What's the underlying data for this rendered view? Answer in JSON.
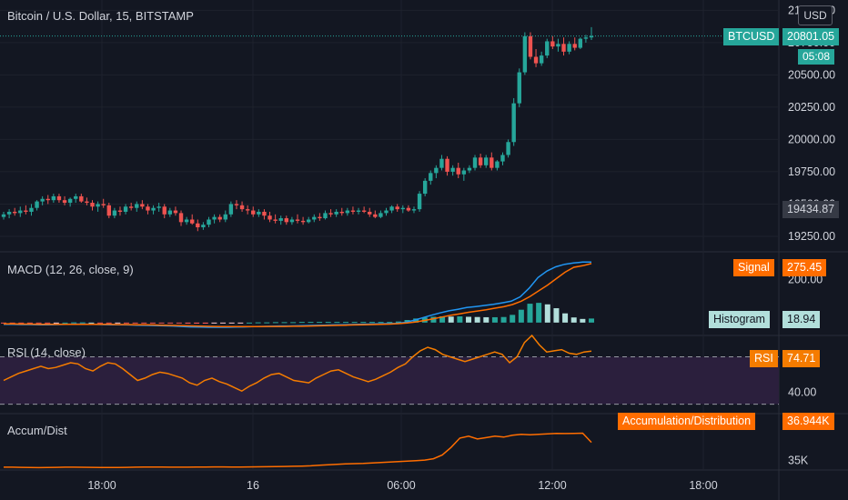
{
  "header": {
    "title": "Bitcoin / U.S. Dollar, 15, BITSTAMP",
    "currency_button": "USD"
  },
  "price_pane": {
    "symbol_tag": "BTCUSD",
    "last_price": "20801.05",
    "countdown": "05:08",
    "crosshair_price": "19434.87",
    "ticks": [
      "21000.00",
      "20750.00",
      "20500.00",
      "20250.00",
      "20000.00",
      "19750.00",
      "19500.00",
      "19250.00"
    ]
  },
  "macd_pane": {
    "title": "MACD (12, 26, close, 9)",
    "signal_label": "Signal",
    "signal_value": "275.45",
    "histogram_label": "Histogram",
    "histogram_value": "18.94",
    "tick": "200.00"
  },
  "rsi_pane": {
    "title": "RSI (14, close)",
    "rsi_label": "RSI",
    "rsi_value": "74.71",
    "tick": "40.00"
  },
  "ad_pane": {
    "title": "Accum/Dist",
    "label": "Accumulation/Distribution",
    "value": "36.944K",
    "tick": "35K"
  },
  "time_axis": [
    "18:00",
    "16",
    "06:00",
    "12:00",
    "18:00"
  ],
  "colors": {
    "background": "#131722",
    "up": "#26a69a",
    "down": "#ef5350",
    "macd": "#2196f3",
    "signal": "#ff6d00",
    "rsi": "#f57c00",
    "accent": "#26a69a"
  },
  "chart_data": {
    "type": "candlestick",
    "interval": "15",
    "price_range": [
      19130,
      21080
    ],
    "candles": [
      [
        19400,
        19440,
        19380,
        19420
      ],
      [
        19420,
        19460,
        19390,
        19440
      ],
      [
        19440,
        19470,
        19410,
        19430
      ],
      [
        19430,
        19480,
        19400,
        19450
      ],
      [
        19450,
        19490,
        19420,
        19440
      ],
      [
        19440,
        19500,
        19410,
        19470
      ],
      [
        19470,
        19530,
        19450,
        19520
      ],
      [
        19520,
        19560,
        19490,
        19540
      ],
      [
        19540,
        19570,
        19500,
        19530
      ],
      [
        19530,
        19580,
        19510,
        19560
      ],
      [
        19560,
        19580,
        19510,
        19530
      ],
      [
        19530,
        19560,
        19490,
        19510
      ],
      [
        19510,
        19550,
        19480,
        19540
      ],
      [
        19540,
        19580,
        19510,
        19560
      ],
      [
        19560,
        19580,
        19510,
        19520
      ],
      [
        19520,
        19550,
        19490,
        19510
      ],
      [
        19510,
        19530,
        19450,
        19480
      ],
      [
        19480,
        19520,
        19440,
        19500
      ],
      [
        19500,
        19540,
        19470,
        19490
      ],
      [
        19490,
        19510,
        19390,
        19410
      ],
      [
        19410,
        19470,
        19390,
        19450
      ],
      [
        19450,
        19480,
        19410,
        19440
      ],
      [
        19440,
        19500,
        19420,
        19480
      ],
      [
        19480,
        19510,
        19450,
        19470
      ],
      [
        19470,
        19520,
        19440,
        19500
      ],
      [
        19500,
        19530,
        19460,
        19480
      ],
      [
        19480,
        19500,
        19420,
        19450
      ],
      [
        19450,
        19490,
        19420,
        19470
      ],
      [
        19470,
        19510,
        19440,
        19480
      ],
      [
        19480,
        19500,
        19390,
        19420
      ],
      [
        19420,
        19470,
        19400,
        19450
      ],
      [
        19450,
        19480,
        19410,
        19430
      ],
      [
        19430,
        19450,
        19330,
        19360
      ],
      [
        19360,
        19400,
        19340,
        19380
      ],
      [
        19380,
        19420,
        19340,
        19350
      ],
      [
        19350,
        19380,
        19290,
        19320
      ],
      [
        19320,
        19360,
        19300,
        19340
      ],
      [
        19340,
        19400,
        19320,
        19380
      ],
      [
        19380,
        19420,
        19350,
        19400
      ],
      [
        19400,
        19420,
        19360,
        19380
      ],
      [
        19380,
        19450,
        19360,
        19420
      ],
      [
        19420,
        19520,
        19400,
        19500
      ],
      [
        19500,
        19530,
        19460,
        19490
      ],
      [
        19490,
        19520,
        19440,
        19460
      ],
      [
        19460,
        19490,
        19420,
        19450
      ],
      [
        19450,
        19480,
        19400,
        19420
      ],
      [
        19420,
        19460,
        19400,
        19440
      ],
      [
        19440,
        19460,
        19380,
        19410
      ],
      [
        19410,
        19440,
        19360,
        19380
      ],
      [
        19380,
        19420,
        19350,
        19370
      ],
      [
        19370,
        19410,
        19340,
        19390
      ],
      [
        19390,
        19410,
        19340,
        19360
      ],
      [
        19360,
        19400,
        19340,
        19380
      ],
      [
        19380,
        19420,
        19350,
        19370
      ],
      [
        19370,
        19400,
        19340,
        19360
      ],
      [
        19360,
        19400,
        19350,
        19380
      ],
      [
        19380,
        19420,
        19360,
        19400
      ],
      [
        19400,
        19430,
        19370,
        19390
      ],
      [
        19390,
        19450,
        19380,
        19430
      ],
      [
        19430,
        19460,
        19400,
        19420
      ],
      [
        19420,
        19460,
        19400,
        19440
      ],
      [
        19440,
        19470,
        19410,
        19430
      ],
      [
        19430,
        19470,
        19410,
        19450
      ],
      [
        19450,
        19480,
        19420,
        19440
      ],
      [
        19440,
        19470,
        19420,
        19450
      ],
      [
        19450,
        19480,
        19430,
        19440
      ],
      [
        19440,
        19470,
        19400,
        19420
      ],
      [
        19420,
        19450,
        19390,
        19400
      ],
      [
        19400,
        19450,
        19390,
        19430
      ],
      [
        19430,
        19470,
        19410,
        19450
      ],
      [
        19450,
        19490,
        19430,
        19480
      ],
      [
        19480,
        19500,
        19440,
        19460
      ],
      [
        19460,
        19490,
        19430,
        19470
      ],
      [
        19470,
        19490,
        19440,
        19450
      ],
      [
        19450,
        19480,
        19430,
        19460
      ],
      [
        19460,
        19600,
        19440,
        19580
      ],
      [
        19580,
        19700,
        19560,
        19680
      ],
      [
        19680,
        19760,
        19650,
        19740
      ],
      [
        19740,
        19800,
        19700,
        19780
      ],
      [
        19780,
        19880,
        19760,
        19850
      ],
      [
        19850,
        19870,
        19720,
        19750
      ],
      [
        19750,
        19800,
        19720,
        19780
      ],
      [
        19780,
        19820,
        19700,
        19730
      ],
      [
        19730,
        19780,
        19680,
        19760
      ],
      [
        19760,
        19800,
        19740,
        19780
      ],
      [
        19780,
        19880,
        19760,
        19860
      ],
      [
        19860,
        19890,
        19780,
        19800
      ],
      [
        19800,
        19880,
        19780,
        19860
      ],
      [
        19860,
        19900,
        19760,
        19780
      ],
      [
        19780,
        19840,
        19760,
        19830
      ],
      [
        19830,
        19900,
        19800,
        19880
      ],
      [
        19880,
        20000,
        19860,
        19980
      ],
      [
        19980,
        20320,
        19950,
        20280
      ],
      [
        20280,
        20550,
        20250,
        20520
      ],
      [
        20520,
        20830,
        20500,
        20800
      ],
      [
        20800,
        20830,
        20620,
        20640
      ],
      [
        20640,
        20700,
        20560,
        20590
      ],
      [
        20590,
        20680,
        20570,
        20650
      ],
      [
        20650,
        20780,
        20630,
        20760
      ],
      [
        20760,
        20800,
        20700,
        20720
      ],
      [
        20720,
        20780,
        20680,
        20740
      ],
      [
        20740,
        20790,
        20650,
        20680
      ],
      [
        20680,
        20760,
        20660,
        20740
      ],
      [
        20740,
        20790,
        20690,
        20710
      ],
      [
        20710,
        20790,
        20700,
        20780
      ],
      [
        20780,
        20810,
        20750,
        20790
      ],
      [
        20790,
        20870,
        20770,
        20801.05
      ]
    ],
    "macd_range": [
      -60,
      330
    ],
    "macd": [
      -8,
      -8,
      -9,
      -9,
      -10,
      -10,
      -9,
      -8,
      -7,
      -7,
      -8,
      -9,
      -10,
      -10,
      -11,
      -12,
      -13,
      -14,
      -15,
      -16,
      -18,
      -20,
      -21,
      -22,
      -22,
      -22,
      -21,
      -20,
      -19,
      -18,
      -17,
      -16,
      -16,
      -15,
      -14,
      -13,
      -12,
      -11,
      -10,
      -9,
      -8,
      -7,
      -6,
      -5,
      -4,
      0,
      10,
      22,
      34,
      45,
      55,
      62,
      70,
      75,
      80,
      85,
      92,
      100,
      120,
      160,
      210,
      240,
      260,
      272,
      278,
      282,
      282
    ],
    "signal": [
      -6,
      -6,
      -7,
      -7,
      -8,
      -8,
      -8,
      -8,
      -8,
      -8,
      -8,
      -8,
      -8,
      -9,
      -9,
      -10,
      -10,
      -11,
      -12,
      -13,
      -14,
      -15,
      -16,
      -17,
      -18,
      -19,
      -19,
      -19,
      -19,
      -19,
      -18,
      -18,
      -18,
      -17,
      -17,
      -16,
      -15,
      -14,
      -13,
      -12,
      -11,
      -10,
      -9,
      -8,
      -7,
      -5,
      -2,
      3,
      10,
      18,
      26,
      34,
      41,
      48,
      54,
      60,
      67,
      74,
      84,
      100,
      122,
      148,
      175,
      205,
      235,
      258,
      265,
      275.45
    ],
    "histogram": [
      -2,
      -2,
      -2,
      -2,
      -2,
      -2,
      -1,
      0,
      1,
      1,
      0,
      -1,
      -2,
      -1,
      -2,
      -2,
      -3,
      -3,
      -3,
      -3,
      -4,
      -5,
      -5,
      -5,
      -4,
      -3,
      -2,
      -1,
      0,
      1,
      1,
      2,
      2,
      2,
      3,
      3,
      3,
      3,
      3,
      3,
      3,
      3,
      3,
      3,
      3,
      5,
      12,
      19,
      24,
      27,
      29,
      28,
      29,
      27,
      26,
      25,
      25,
      26,
      36,
      60,
      88,
      92,
      85,
      67,
      43,
      24,
      17,
      18.94
    ],
    "rsi_range": [
      22,
      88
    ],
    "rsi_levels": [
      70,
      30
    ],
    "rsi": [
      50,
      53,
      56,
      58,
      60,
      62,
      60,
      61,
      63,
      65,
      64,
      60,
      58,
      62,
      65,
      64,
      60,
      55,
      50,
      52,
      55,
      57,
      56,
      54,
      52,
      48,
      46,
      50,
      52,
      49,
      47,
      44,
      41,
      45,
      48,
      52,
      55,
      56,
      53,
      50,
      49,
      48,
      52,
      55,
      58,
      59,
      56,
      53,
      51,
      49,
      51,
      54,
      57,
      61,
      64,
      70,
      75,
      78,
      76,
      72,
      70,
      68,
      66,
      68,
      70,
      72,
      74,
      72,
      65,
      70,
      82,
      88,
      80,
      74,
      75,
      76,
      73,
      72,
      74,
      74.71
    ],
    "ad_range": [
      34000,
      40000
    ],
    "ad": [
      34300,
      34300,
      34280,
      34260,
      34250,
      34260,
      34280,
      34300,
      34300,
      34290,
      34280,
      34270,
      34260,
      34260,
      34280,
      34300,
      34320,
      34320,
      34310,
      34300,
      34300,
      34300,
      34310,
      34320,
      34330,
      34330,
      34320,
      34320,
      34330,
      34340,
      34350,
      34360,
      34380,
      34400,
      34420,
      34450,
      34500,
      34550,
      34600,
      34650,
      34680,
      34700,
      34750,
      34800,
      34850,
      34900,
      34950,
      35000,
      35050,
      35200,
      35600,
      36400,
      37400,
      37600,
      37300,
      37450,
      37600,
      37500,
      37700,
      37800,
      37750,
      37800,
      37850,
      37900,
      37880,
      37900,
      37920,
      36944
    ]
  }
}
